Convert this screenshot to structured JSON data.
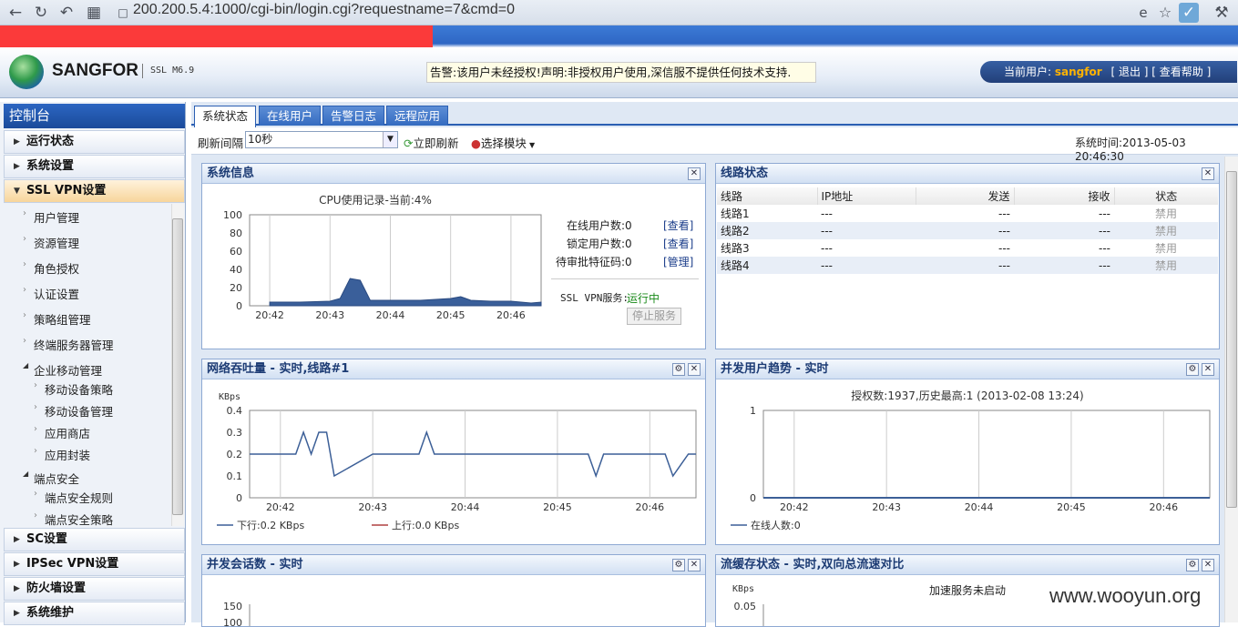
{
  "browser": {
    "url": "200.200.5.4:1000/cgi-bin/login.cgi?requestname=7&cmd=0"
  },
  "header": {
    "brand": "SANGFOR",
    "version": "SSL M6.9",
    "warning": "告警:该用户未经授权!声明:非授权用户使用,深信服不提供任何技术支持.",
    "user_label": "当前用户:",
    "user_name": "sangfor",
    "logout": "[ 退出 ]",
    "help": "[ 查看帮助 ]"
  },
  "sidebar": {
    "title": "控制台",
    "sections_top": [
      "运行状态",
      "系统设置",
      "SSL VPN设置"
    ],
    "ssl_items": [
      "用户管理",
      "资源管理",
      "角色授权",
      "认证设置",
      "策略组管理",
      "终端服务器管理"
    ],
    "mobile_group": "企业移动管理",
    "mobile_items": [
      "移动设备策略",
      "移动设备管理",
      "应用商店",
      "应用封装"
    ],
    "endpoint_group": "端点安全",
    "endpoint_items": [
      "端点安全规则",
      "端点安全策略"
    ],
    "sections_bottom": [
      "SC设置",
      "IPSec VPN设置",
      "防火墙设置",
      "系统维护"
    ]
  },
  "tabs": [
    "系统状态",
    "在线用户",
    "告警日志",
    "远程应用"
  ],
  "toolbar": {
    "refresh_label": "刷新间隔",
    "refresh_value": "10秒",
    "refresh_now": "立即刷新",
    "select_module": "选择模块",
    "system_time": "系统时间:2013-05-03 20:46:30"
  },
  "sysinfo": {
    "title": "系统信息",
    "online_users": "在线用户数:0",
    "locked_users": "锁定用户数:0",
    "pending": "待审批特征码:0",
    "view1": "[查看]",
    "view2": "[查看]",
    "manage": "[管理]",
    "ssl_service_label": "SSL VPN服务:",
    "ssl_service_status": "运行中",
    "stop_service": "停止服务"
  },
  "lines": {
    "title": "线路状态",
    "headers": [
      "线路",
      "IP地址",
      "发送",
      "接收",
      "状态"
    ],
    "rows": [
      [
        "线路1",
        "---",
        "---",
        "---",
        "禁用"
      ],
      [
        "线路2",
        "---",
        "---",
        "---",
        "禁用"
      ],
      [
        "线路3",
        "---",
        "---",
        "---",
        "禁用"
      ],
      [
        "线路4",
        "---",
        "---",
        "---",
        "禁用"
      ]
    ]
  },
  "throughput": {
    "title": "网络吞吐量 - 实时,线路#1",
    "legend_down": "下行:0.2 KBps",
    "legend_up": "上行:0.0 KBps"
  },
  "concurrent": {
    "title": "并发用户趋势 - 实时",
    "legend": "在线人数:0"
  },
  "sessions": {
    "title": "并发会话数 - 实时"
  },
  "cache": {
    "title": "流缓存状态 - 实时,双向总流速对比",
    "note": "加速服务未启动"
  },
  "watermark": "www.wooyun.org",
  "chart_data": [
    {
      "type": "area",
      "title": "CPU使用记录-当前:4%",
      "x": [
        "20:42",
        "20:42:30",
        "20:43",
        "20:43:10",
        "20:43:20",
        "20:43:30",
        "20:43:40",
        "20:44",
        "20:44:30",
        "20:45",
        "20:45:10",
        "20:45:20",
        "20:45:40",
        "20:46",
        "20:46:20",
        "20:46:30"
      ],
      "series": [
        {
          "values": [
            4,
            4,
            5,
            8,
            30,
            28,
            6,
            6,
            6,
            8,
            10,
            6,
            5,
            5,
            3,
            4
          ]
        }
      ],
      "ylim": [
        0,
        100
      ],
      "yticks": [
        "0",
        "20",
        "40",
        "60",
        "80",
        "100"
      ],
      "xticks": [
        "20:42",
        "20:43",
        "20:44",
        "20:45",
        "20:46"
      ],
      "xlabel": "",
      "ylabel": ""
    },
    {
      "type": "line",
      "title": "",
      "ylabel": "KBps",
      "ylim": [
        0,
        0.4
      ],
      "yticks": [
        "0",
        "0.1",
        "0.2",
        "0.3",
        "0.4"
      ],
      "xticks": [
        "20:42",
        "20:43",
        "20:44",
        "20:45",
        "20:46"
      ],
      "x": [
        "20:41:40",
        "20:42:00",
        "20:42:10",
        "20:42:15",
        "20:42:20",
        "20:42:25",
        "20:42:30",
        "20:42:35",
        "20:43",
        "20:43:30",
        "20:43:35",
        "20:43:40",
        "20:44",
        "20:44:30",
        "20:45:20",
        "20:45:25",
        "20:45:30",
        "20:46",
        "20:46:10",
        "20:46:15",
        "20:46:25",
        "20:46:30"
      ],
      "series": [
        {
          "name": "下行",
          "values": [
            0.2,
            0.2,
            0.2,
            0.3,
            0.2,
            0.3,
            0.3,
            0.1,
            0.2,
            0.2,
            0.3,
            0.2,
            0.2,
            0.2,
            0.2,
            0.1,
            0.2,
            0.2,
            0.2,
            0.1,
            0.2,
            0.2
          ]
        },
        {
          "name": "上行",
          "values": [
            0,
            0,
            0,
            0,
            0,
            0,
            0,
            0,
            0,
            0,
            0,
            0,
            0,
            0,
            0,
            0,
            0,
            0,
            0,
            0,
            0,
            0
          ]
        }
      ]
    },
    {
      "type": "line",
      "title": "授权数:1937,历史最高:1 (2013-02-08 13:24)",
      "ylim": [
        0,
        1
      ],
      "yticks": [
        "0",
        "1"
      ],
      "xticks": [
        "20:42",
        "20:43",
        "20:44",
        "20:45",
        "20:46"
      ],
      "x": [
        "20:41:40",
        "20:46:30"
      ],
      "series": [
        {
          "name": "在线人数",
          "values": [
            0,
            0
          ]
        }
      ],
      "xlabel": "",
      "ylabel": ""
    },
    {
      "type": "line",
      "title": "",
      "ylim": [
        0,
        150
      ],
      "yticks": [
        "150",
        "100"
      ],
      "series": [],
      "xlabel": "",
      "ylabel": ""
    },
    {
      "type": "line",
      "title": "",
      "ylabel": "KBps",
      "yticks": [
        "0.05"
      ],
      "series": [],
      "xlabel": ""
    }
  ]
}
